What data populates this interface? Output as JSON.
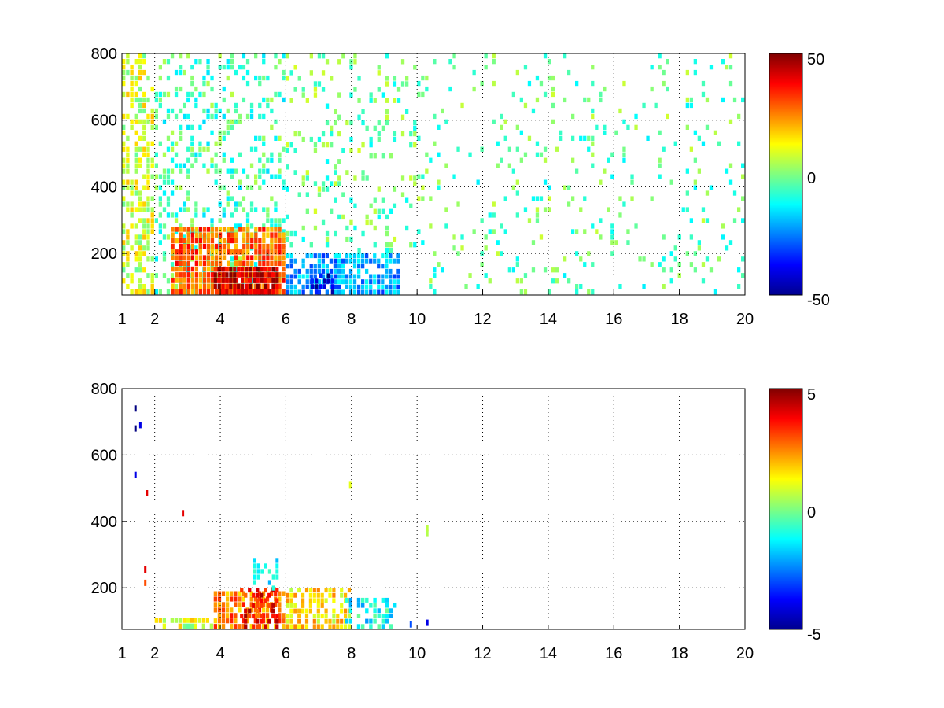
{
  "chart_data": [
    {
      "type": "heatmap",
      "title": "",
      "xlabel": "",
      "ylabel": "",
      "xlim": [
        1,
        20
      ],
      "ylim": [
        75,
        800
      ],
      "xticks": [
        "1",
        "2",
        "4",
        "6",
        "8",
        "10",
        "12",
        "14",
        "16",
        "18",
        "20"
      ],
      "yticks": [
        "200",
        "400",
        "600",
        "800"
      ],
      "grid": true,
      "colormap": "jet",
      "clim": [
        -50,
        50
      ],
      "colorbar_ticks": [
        "50",
        "0",
        "-50"
      ],
      "field_regions": [
        {
          "x": [
            1.0,
            2.0
          ],
          "y": [
            75,
            800
          ],
          "value": 8,
          "density": 0.55
        },
        {
          "x": [
            2.0,
            6.0
          ],
          "y": [
            75,
            800
          ],
          "value": -5,
          "density": 0.3
        },
        {
          "x": [
            6.0,
            10.0
          ],
          "y": [
            200,
            800
          ],
          "value": -2,
          "density": 0.18
        },
        {
          "x": [
            10.0,
            20.0
          ],
          "y": [
            75,
            800
          ],
          "value": -3,
          "density": 0.1
        },
        {
          "x": [
            2.5,
            6.0
          ],
          "y": [
            75,
            280
          ],
          "value": 28,
          "density": 0.9
        },
        {
          "x": [
            3.8,
            5.8
          ],
          "y": [
            75,
            160
          ],
          "value": 42,
          "density": 0.95
        },
        {
          "x": [
            6.0,
            9.5
          ],
          "y": [
            75,
            200
          ],
          "value": -22,
          "density": 0.8
        },
        {
          "x": [
            6.5,
            7.5
          ],
          "y": [
            75,
            140
          ],
          "value": -42,
          "density": 0.6
        }
      ]
    },
    {
      "type": "heatmap",
      "title": "",
      "xlabel": "",
      "ylabel": "",
      "xlim": [
        1,
        20
      ],
      "ylim": [
        75,
        800
      ],
      "xticks": [
        "1",
        "2",
        "4",
        "6",
        "8",
        "10",
        "12",
        "14",
        "16",
        "18",
        "20"
      ],
      "yticks": [
        "200",
        "400",
        "600",
        "800"
      ],
      "grid": true,
      "colormap": "jet",
      "clim": [
        -5,
        5
      ],
      "colorbar_ticks": [
        "5",
        "0",
        "-5"
      ],
      "field_regions": [
        {
          "x": [
            2.0,
            3.8
          ],
          "y": [
            75,
            110
          ],
          "value": 0.8,
          "density": 0.7
        },
        {
          "x": [
            3.8,
            6.0
          ],
          "y": [
            75,
            190
          ],
          "value": 2.5,
          "density": 0.75
        },
        {
          "x": [
            4.6,
            5.8
          ],
          "y": [
            75,
            200
          ],
          "value": 3.6,
          "density": 0.5
        },
        {
          "x": [
            5.0,
            5.8
          ],
          "y": [
            190,
            290
          ],
          "value": -1.5,
          "density": 0.35
        },
        {
          "x": [
            6.0,
            8.0
          ],
          "y": [
            75,
            200
          ],
          "value": 1.5,
          "density": 0.65
        },
        {
          "x": [
            7.8,
            9.4
          ],
          "y": [
            75,
            170
          ],
          "value": -1.2,
          "density": 0.55
        }
      ],
      "points": [
        {
          "x": 1.4,
          "y": 680,
          "value": -5
        },
        {
          "x": 1.4,
          "y": 740,
          "value": -5
        },
        {
          "x": 1.4,
          "y": 540,
          "value": -4
        },
        {
          "x": 1.55,
          "y": 690,
          "value": -4
        },
        {
          "x": 1.75,
          "y": 485,
          "value": 4
        },
        {
          "x": 1.7,
          "y": 255,
          "value": 4
        },
        {
          "x": 1.7,
          "y": 215,
          "value": 3
        },
        {
          "x": 2.85,
          "y": 425,
          "value": 4
        },
        {
          "x": 7.95,
          "y": 510,
          "value": 1
        },
        {
          "x": 10.3,
          "y": 365,
          "value": 0.5
        },
        {
          "x": 10.3,
          "y": 380,
          "value": 0.6
        },
        {
          "x": 9.8,
          "y": 90,
          "value": -3
        },
        {
          "x": 10.3,
          "y": 95,
          "value": -4
        }
      ]
    }
  ]
}
